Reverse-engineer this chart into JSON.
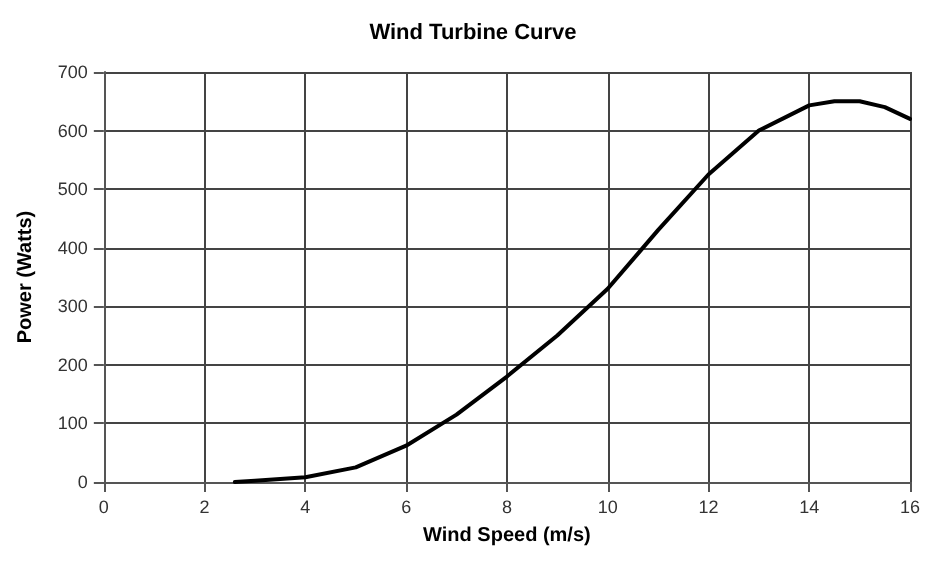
{
  "chart_data": {
    "type": "line",
    "title": "Wind Turbine Curve",
    "xlabel": "Wind Speed (m/s)",
    "ylabel": "Power (Watts)",
    "x": [
      2.6,
      3,
      4,
      5,
      6,
      7,
      8,
      9,
      10,
      10.6,
      11,
      12,
      13,
      14,
      14.5,
      15,
      15.5,
      16
    ],
    "series": [
      {
        "color": "#000000",
        "values": [
          0,
          2,
          8,
          25,
          62,
          115,
          180,
          250,
          330,
          390,
          430,
          525,
          600,
          643,
          650,
          650,
          640,
          620
        ]
      }
    ],
    "xlim": [
      0,
      16
    ],
    "xticks": [
      0,
      2,
      4,
      6,
      8,
      10,
      12,
      14,
      16
    ],
    "ylim": [
      0,
      700
    ],
    "yticks": [
      0,
      100,
      200,
      300,
      400,
      500,
      600,
      700
    ],
    "grid": true,
    "marker": "none",
    "line_style": "solid"
  }
}
